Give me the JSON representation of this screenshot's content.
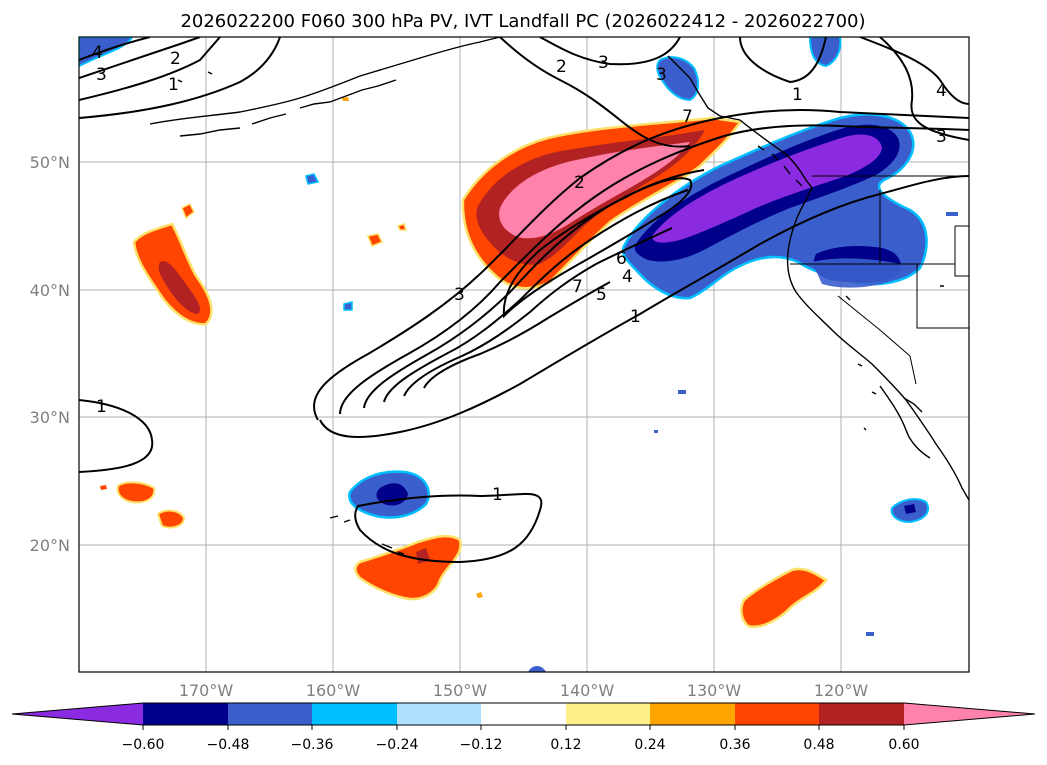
{
  "title": "2026022200 F060 300 hPa PV, IVT Landfall PC (2026022412 - 2026022700)",
  "map": {
    "lat_labels": [
      "50°N",
      "40°N",
      "30°N",
      "20°N"
    ],
    "lon_labels": [
      "170°W",
      "160°W",
      "150°W",
      "140°W",
      "130°W",
      "120°W"
    ],
    "contour_labels": [
      "4",
      "3",
      "2",
      "1",
      "3",
      "2",
      "3",
      "1",
      "4",
      "3",
      "7",
      "2",
      "3",
      "7",
      "5",
      "6",
      "4",
      "1",
      "1",
      "1"
    ]
  },
  "colorbar": {
    "colors": [
      "#8a2be2",
      "#00008b",
      "#3a5fcd",
      "#00bfff",
      "#b0e2ff",
      "#ffffff",
      "#fff08c",
      "#ffa500",
      "#ff4500",
      "#b22222",
      "#ff82ab"
    ],
    "ticks": [
      "−0.60",
      "−0.48",
      "−0.36",
      "−0.24",
      "−0.12",
      "0.12",
      "0.24",
      "0.36",
      "0.48",
      "0.60"
    ]
  }
}
